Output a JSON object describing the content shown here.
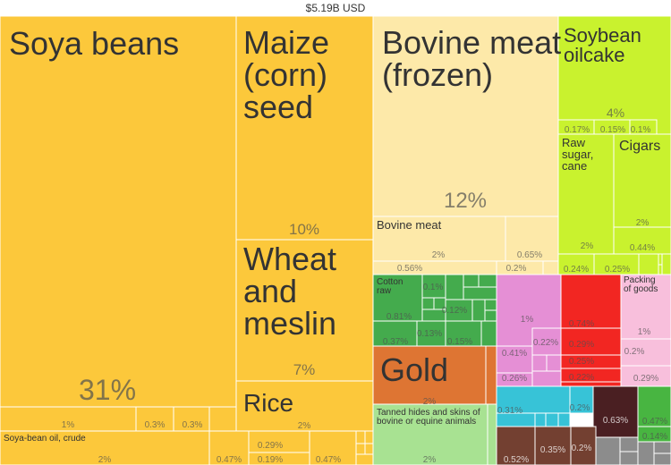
{
  "chart_data": {
    "type": "treemap",
    "title": "$5.19B USD",
    "colors": {
      "vegetable_products": "#fcc83b",
      "animal_products": "#fde9a9",
      "foodstuffs": "#c9f22e",
      "textiles": "#44ab4d",
      "metals_and_stones": "#de7533",
      "animal_hides": "#a8e292",
      "chemicals": "#e58fd5",
      "plastics": "#f22622",
      "paper": "#f8bfdc",
      "machines": "#37c3d7",
      "transport": "#734031",
      "instruments": "#8c8c8c",
      "other": "#4a1f22",
      "dark_green": "#48b541"
    },
    "items": [
      {
        "label": "Soya beans",
        "share_label": "31%",
        "value": 31,
        "group": "vegetable_products"
      },
      {
        "label": "",
        "share_label": "1%",
        "value": 1,
        "group": "vegetable_products"
      },
      {
        "label": "",
        "share_label": "0.3%",
        "value": 0.3,
        "group": "vegetable_products"
      },
      {
        "label": "",
        "share_label": "0.3%",
        "value": 0.3,
        "group": "vegetable_products"
      },
      {
        "label": "Soya-bean oil, crude",
        "share_label": "2%",
        "value": 2,
        "group": "vegetable_products"
      },
      {
        "label": "",
        "share_label": "0.47%",
        "value": 0.47,
        "group": "vegetable_products"
      },
      {
        "label": "",
        "share_label": "0.29%",
        "value": 0.29,
        "group": "vegetable_products"
      },
      {
        "label": "",
        "share_label": "0.19%",
        "value": 0.19,
        "group": "vegetable_products"
      },
      {
        "label": "",
        "share_label": "0.47%",
        "value": 0.47,
        "group": "vegetable_products"
      },
      {
        "label": "Maize (corn) seed",
        "share_label": "10%",
        "value": 10,
        "group": "vegetable_products"
      },
      {
        "label": "Wheat and meslin",
        "share_label": "7%",
        "value": 7,
        "group": "vegetable_products"
      },
      {
        "label": "Rice",
        "share_label": "2%",
        "value": 2,
        "group": "vegetable_products"
      },
      {
        "label": "Bovine meat (frozen)",
        "share_label": "12%",
        "value": 12,
        "group": "animal_products"
      },
      {
        "label": "Bovine meat",
        "share_label": "2%",
        "value": 2,
        "group": "animal_products"
      },
      {
        "label": "",
        "share_label": "0.65%",
        "value": 0.65,
        "group": "animal_products"
      },
      {
        "label": "",
        "share_label": "0.56%",
        "value": 0.56,
        "group": "animal_products"
      },
      {
        "label": "",
        "share_label": "0.2%",
        "value": 0.2,
        "group": "animal_products"
      },
      {
        "label": "Soybean oilcake",
        "share_label": "4%",
        "value": 4,
        "group": "foodstuffs"
      },
      {
        "label": "",
        "share_label": "0.17%",
        "value": 0.17,
        "group": "foodstuffs"
      },
      {
        "label": "",
        "share_label": "0.15%",
        "value": 0.15,
        "group": "foodstuffs"
      },
      {
        "label": "",
        "share_label": "0.1%",
        "value": 0.1,
        "group": "foodstuffs"
      },
      {
        "label": "Raw sugar, cane",
        "share_label": "2%",
        "value": 2,
        "group": "foodstuffs"
      },
      {
        "label": "Cigars",
        "share_label": "2%",
        "value": 2,
        "group": "foodstuffs"
      },
      {
        "label": "",
        "share_label": "0.44%",
        "value": 0.44,
        "group": "foodstuffs"
      },
      {
        "label": "",
        "share_label": "0.24%",
        "value": 0.24,
        "group": "foodstuffs"
      },
      {
        "label": "",
        "share_label": "0.25%",
        "value": 0.25,
        "group": "foodstuffs"
      },
      {
        "label": "Cotton raw",
        "share_label": "0.81%",
        "value": 0.81,
        "group": "textiles"
      },
      {
        "label": "",
        "share_label": "0.1%",
        "value": 0.1,
        "group": "textiles"
      },
      {
        "label": "",
        "share_label": "0.12%",
        "value": 0.12,
        "group": "textiles"
      },
      {
        "label": "",
        "share_label": "0.37%",
        "value": 0.37,
        "group": "textiles"
      },
      {
        "label": "",
        "share_label": "0.13%",
        "value": 0.13,
        "group": "textiles"
      },
      {
        "label": "",
        "share_label": "0.15%",
        "value": 0.15,
        "group": "textiles"
      },
      {
        "label": "Gold",
        "share_label": "2%",
        "value": 2,
        "group": "metals_and_stones"
      },
      {
        "label": "Tanned hides and skins of bovine or equine animals",
        "share_label": "2%",
        "value": 2,
        "group": "animal_hides"
      },
      {
        "label": "",
        "share_label": "1%",
        "value": 1,
        "group": "chemicals"
      },
      {
        "label": "",
        "share_label": "0.41%",
        "value": 0.41,
        "group": "chemicals"
      },
      {
        "label": "",
        "share_label": "0.22%",
        "value": 0.22,
        "group": "chemicals"
      },
      {
        "label": "",
        "share_label": "0.26%",
        "value": 0.26,
        "group": "chemicals"
      },
      {
        "label": "",
        "share_label": "0.74%",
        "value": 0.74,
        "group": "plastics"
      },
      {
        "label": "",
        "share_label": "0.29%",
        "value": 0.29,
        "group": "plastics"
      },
      {
        "label": "",
        "share_label": "0.25%",
        "value": 0.25,
        "group": "plastics"
      },
      {
        "label": "",
        "share_label": "0.22%",
        "value": 0.22,
        "group": "plastics"
      },
      {
        "label": "Packing of goods",
        "share_label": "1%",
        "value": 1,
        "group": "paper"
      },
      {
        "label": "",
        "share_label": "0.2%",
        "value": 0.2,
        "group": "paper"
      },
      {
        "label": "",
        "share_label": "0.29%",
        "value": 0.29,
        "group": "paper"
      },
      {
        "label": "",
        "share_label": "0.31%",
        "value": 0.31,
        "group": "machines"
      },
      {
        "label": "",
        "share_label": "0.2%",
        "value": 0.2,
        "group": "machines"
      },
      {
        "label": "",
        "share_label": "0.63%",
        "value": 0.63,
        "group": "other"
      },
      {
        "label": "",
        "share_label": "0.47%",
        "value": 0.47,
        "group": "dark_green"
      },
      {
        "label": "",
        "share_label": "0.14%",
        "value": 0.14,
        "group": "dark_green"
      },
      {
        "label": "",
        "share_label": "0.52%",
        "value": 0.52,
        "group": "transport"
      },
      {
        "label": "",
        "share_label": "0.35%",
        "value": 0.35,
        "group": "transport"
      },
      {
        "label": "",
        "share_label": "0.2%",
        "value": 0.2,
        "group": "transport"
      }
    ]
  }
}
